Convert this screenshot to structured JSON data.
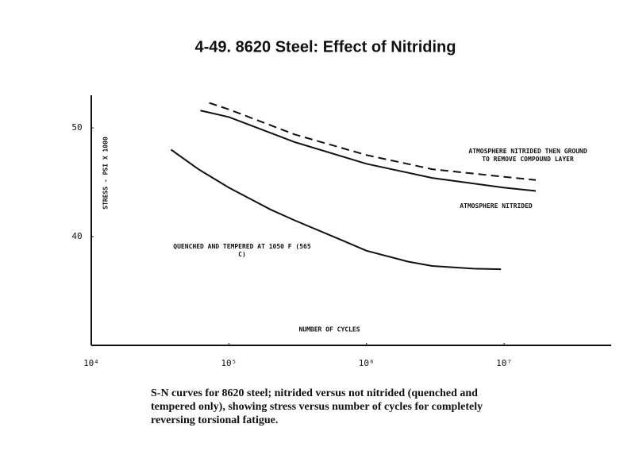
{
  "chart_data": {
    "type": "line",
    "title": "4-49. 8620 Steel: Effect of Nitriding",
    "x_label": "NUMBER OF CYCLES",
    "y_label": "STRESS - PSI X 1000",
    "caption": "S-N curves for 8620 steel; nitrided versus not nitrided (quenched and tempered only), showing stress versus number of cycles for completely reversing torsional fatigue.",
    "xscale": "log",
    "grid": false,
    "xlim": [
      10000,
      60000000
    ],
    "ylim": [
      30,
      53
    ],
    "xticks": [
      {
        "value": 10000,
        "label": "10⁴"
      },
      {
        "value": 100000,
        "label": "10⁵"
      },
      {
        "value": 1000000,
        "label": "10⁶"
      },
      {
        "value": 10000000,
        "label": "10⁷"
      }
    ],
    "yticks": [
      40,
      50
    ],
    "series": [
      {
        "name": "ATMOSPHERE NITRIDED THEN GROUND TO REMOVE COMPOUND LAYER",
        "color": "#111111",
        "linestyle": "dashed",
        "x": [
          72000,
          100000,
          300000,
          1000000,
          3000000,
          10000000,
          17000000
        ],
        "values": [
          52.3,
          51.7,
          49.4,
          47.5,
          46.2,
          45.5,
          45.2
        ]
      },
      {
        "name": "ATMOSPHERE NITRIDED",
        "color": "#111111",
        "linestyle": "solid",
        "x": [
          62000,
          100000,
          300000,
          1000000,
          3000000,
          10000000,
          17000000
        ],
        "values": [
          51.6,
          51.0,
          48.7,
          46.7,
          45.4,
          44.5,
          44.2
        ]
      },
      {
        "name": "QUENCHED AND TEMPERED AT 1050 F (565 C)",
        "color": "#111111",
        "linestyle": "solid",
        "x": [
          38000,
          60000,
          100000,
          200000,
          300000,
          600000,
          1000000,
          2000000,
          3000000,
          6000000,
          9500000
        ],
        "values": [
          48.0,
          46.2,
          44.5,
          42.5,
          41.5,
          39.9,
          38.7,
          37.7,
          37.3,
          37.05,
          37.0
        ]
      }
    ]
  }
}
